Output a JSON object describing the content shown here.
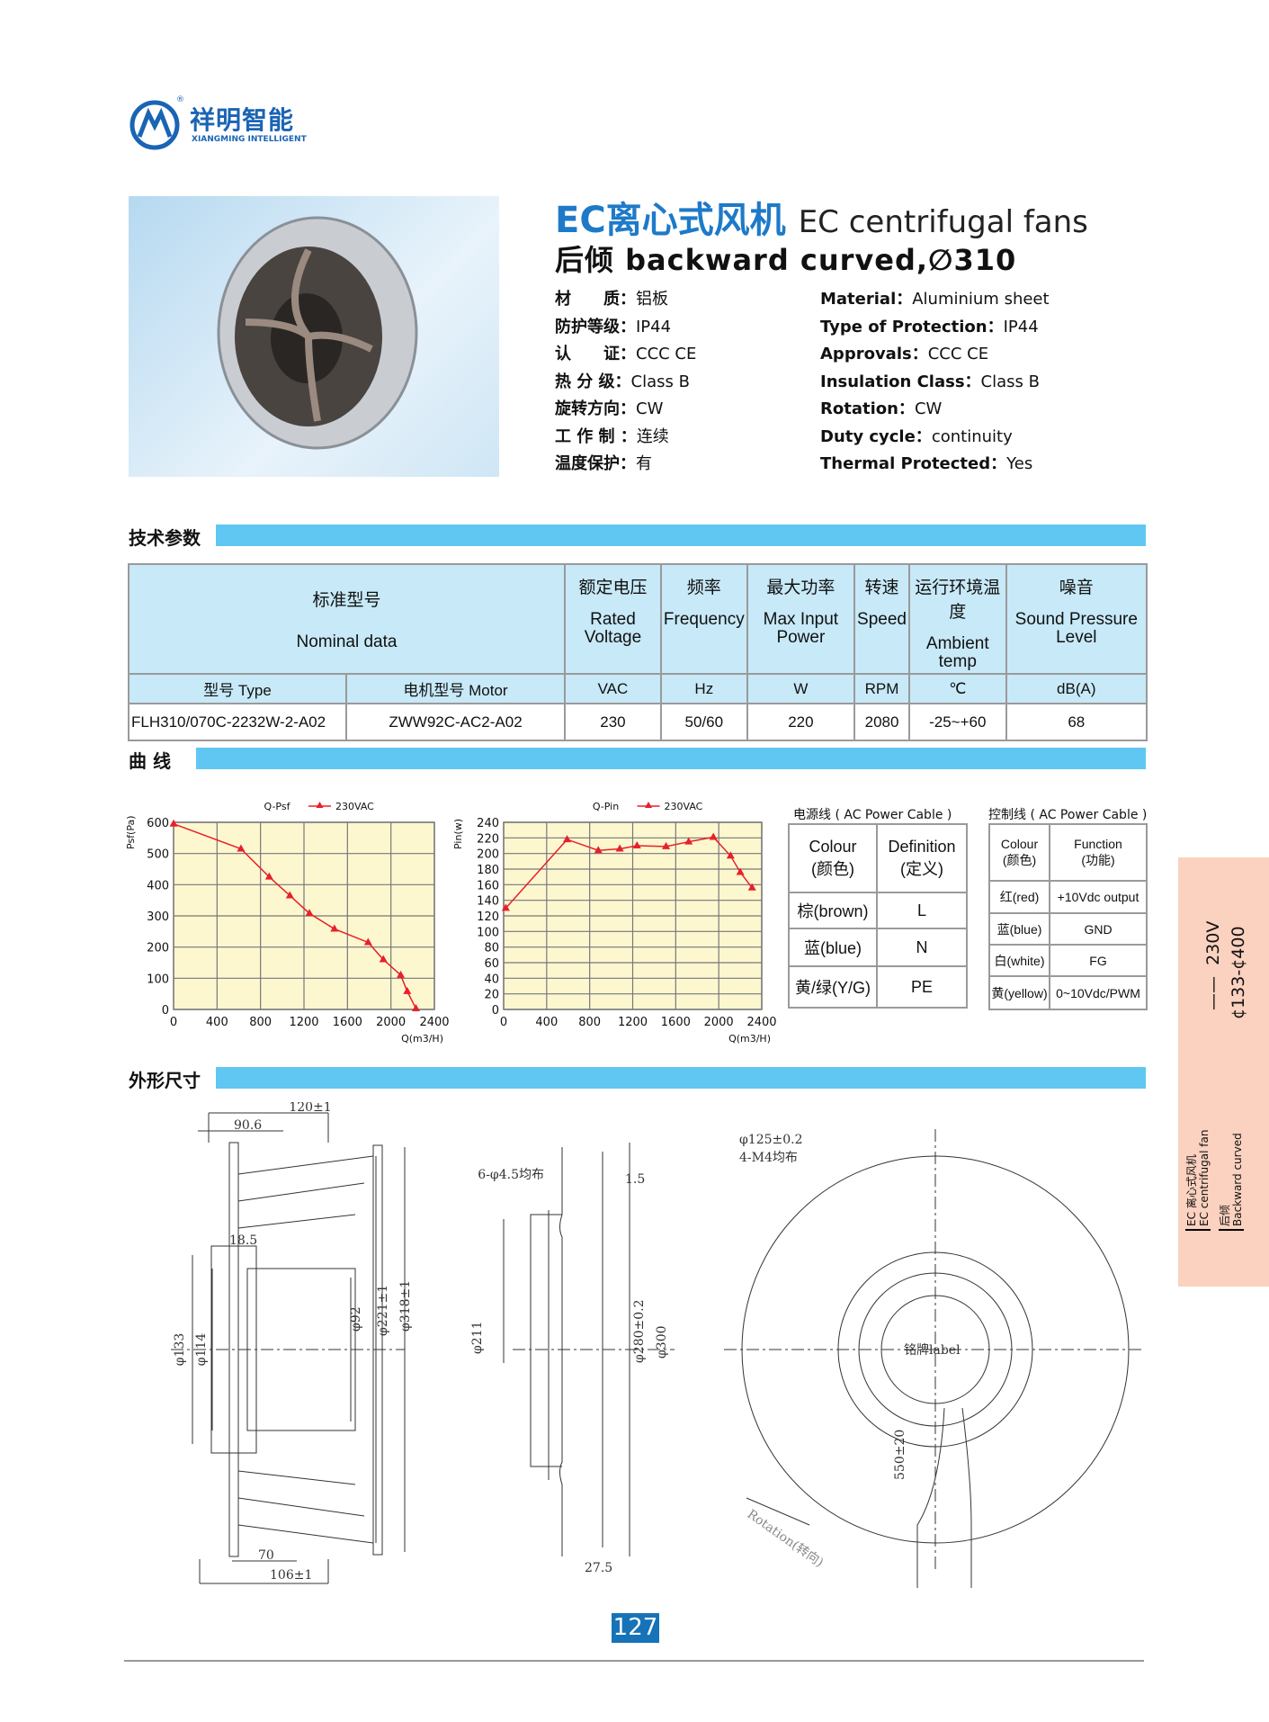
{
  "brand": {
    "name_cn": "祥明智能",
    "name_en": "XIANGMING INTELLIGENT",
    "registered": "®",
    "color": "#1a64b4"
  },
  "title": {
    "cn": "EC离心式风机",
    "en": "EC centrifugal fans",
    "line2": "后倾  backward curved,∅310"
  },
  "specs_cn": [
    {
      "label": "材　　质：",
      "value": "铝板"
    },
    {
      "label": "防护等级：",
      "value": "IP44"
    },
    {
      "label": "认　　证：",
      "value": "CCC  CE"
    },
    {
      "label": "热 分 级：",
      "value": "Class  B"
    },
    {
      "label": "旋转方向：",
      "value": "CW"
    },
    {
      "label": "工 作 制 ：",
      "value": "连续"
    },
    {
      "label": "温度保护：",
      "value": "有"
    }
  ],
  "specs_en": [
    {
      "label": "Material：",
      "value": "Aluminium sheet"
    },
    {
      "label": "Type of Protection：",
      "value": "IP44"
    },
    {
      "label": "Approvals：",
      "value": "CCC  CE"
    },
    {
      "label": "Insulation Class：",
      "value": "Class  B"
    },
    {
      "label": "Rotation：",
      "value": "CW"
    },
    {
      "label": "Duty cycle：",
      "value": "continuity"
    },
    {
      "label": "Thermal  Protected：",
      "value": "Yes"
    }
  ],
  "sections": {
    "tech": "技术参数",
    "curve": "曲  线",
    "dims": "外形尺寸"
  },
  "table": {
    "h_nominal_cn": "标准型号",
    "h_nominal_en": "Nominal  data",
    "cols": [
      {
        "cn": "额定电压",
        "en": "Rated Voltage",
        "unit": "VAC",
        "value": "230"
      },
      {
        "cn": "频率",
        "en": "Frequency",
        "unit": "Hz",
        "value": "50/60"
      },
      {
        "cn": "最大功率",
        "en": "Max Input Power",
        "unit": "W",
        "value": "220"
      },
      {
        "cn": "转速",
        "en": "Speed",
        "unit": "RPM",
        "value": "2080"
      },
      {
        "cn": "运行环境温度",
        "en": "Ambient temp",
        "unit": "℃",
        "value": "-25~+60"
      },
      {
        "cn": "噪音",
        "en": "Sound Pressure Level",
        "unit": "dB(A)",
        "value": "68"
      }
    ],
    "type_label": "型号 Type",
    "motor_label": "电机型号 Motor",
    "type_value": "FLH310/070C-2232W-2-A02",
    "motor_value": "ZWW92C-AC2-A02"
  },
  "chart_data": [
    {
      "type": "line",
      "title": "Q-Psf",
      "legend": "230VAC",
      "xlabel": "Q(m3/H)",
      "ylabel": "Psf(Pa)",
      "xlim": [
        0,
        2400
      ],
      "ylim": [
        0,
        600
      ],
      "xticks": [
        0,
        400,
        800,
        1200,
        1600,
        2000,
        2400
      ],
      "yticks": [
        0,
        100,
        200,
        300,
        400,
        500,
        600
      ],
      "grid": true,
      "color": "#e8202a",
      "background": "#fdf7d0",
      "x": [
        0,
        620,
        880,
        1070,
        1250,
        1480,
        1790,
        1930,
        2090,
        2150,
        2230
      ],
      "y": [
        595,
        515,
        425,
        365,
        308,
        258,
        215,
        160,
        110,
        58,
        3
      ]
    },
    {
      "type": "line",
      "title": "Q-Pin",
      "legend": "230VAC",
      "xlabel": "Q(m3/H)",
      "ylabel": "Pin(w)",
      "xlim": [
        0,
        2400
      ],
      "ylim": [
        0,
        240
      ],
      "xticks": [
        0,
        400,
        800,
        1200,
        1600,
        2000,
        2400
      ],
      "yticks": [
        0,
        20,
        40,
        60,
        80,
        100,
        120,
        140,
        160,
        180,
        200,
        220,
        240
      ],
      "grid": true,
      "color": "#e8202a",
      "background": "#fdf7d0",
      "x": [
        20,
        590,
        880,
        1080,
        1240,
        1510,
        1720,
        1950,
        2110,
        2200,
        2310
      ],
      "y": [
        130,
        218,
        204,
        206,
        210,
        209,
        215,
        221,
        197,
        176,
        156
      ]
    }
  ],
  "power_cable": {
    "title": "电源线 ( AC Power Cable )",
    "h1": "Colour",
    "h1b": "(颜色)",
    "h2": "Definition",
    "h2b": "(定义)",
    "rows": [
      {
        "c": "棕(brown)",
        "d": "L"
      },
      {
        "c": "蓝(blue)",
        "d": "N"
      },
      {
        "c": "黄/绿(Y/G)",
        "d": "PE"
      }
    ]
  },
  "control_cable": {
    "title": "控制线 ( AC Power Cable )",
    "h1": "Colour",
    "h1b": "(颜色)",
    "h2": "Function",
    "h2b": "(功能)",
    "rows": [
      {
        "c": "红(red)",
        "d": "+10Vdc output"
      },
      {
        "c": "蓝(blue)",
        "d": "GND"
      },
      {
        "c": "白(white)",
        "d": "FG"
      },
      {
        "c": "黄(yellow)",
        "d": "0~10Vdc/PWM"
      }
    ]
  },
  "dims": {
    "d120": "120±1",
    "d906": "90.6",
    "d185": "18.5",
    "d133": "φ133",
    "d114": "φ114",
    "d92": "φ92",
    "d221": "φ221±1",
    "d318": "φ318±1",
    "d70": "70",
    "d106": "106±1",
    "d15": "1.5",
    "holes": "6-φ4.5均布",
    "d211": "φ211",
    "d280": "φ280±0.2",
    "d300": "φ300",
    "d275": "27.5",
    "d125": "φ125±0.2",
    "m4": "4-M4均布",
    "label": "铭牌label",
    "d550": "550±20",
    "rotation": "Rotation(转向)"
  },
  "side_tab": {
    "voltage": "230V",
    "range": "¢133-¢400",
    "l1": "EC 离心式风机",
    "l2": "EC centrifugal fan",
    "l3": "后倾",
    "l4": "Backward curved",
    "color": "#fbd1bf"
  },
  "page_number": "127"
}
